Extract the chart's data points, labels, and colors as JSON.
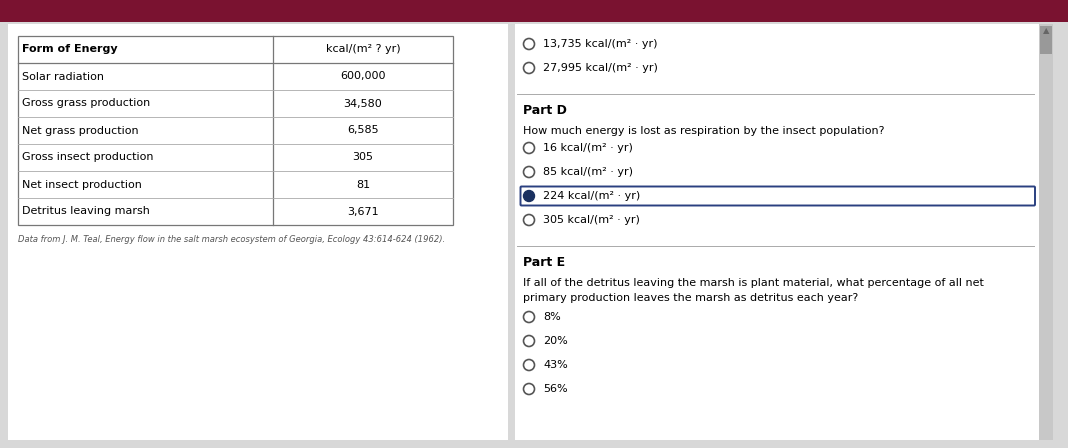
{
  "bg_color": "#d8d8d8",
  "panel_color": "#e8e8ec",
  "top_bar_color": "#7a1230",
  "table_header_col1": "Form of Energy",
  "table_header_col2": "kcal/(m² ? yr)",
  "table_rows": [
    [
      "Solar radiation",
      "600,000"
    ],
    [
      "Gross grass production",
      "34,580"
    ],
    [
      "Net grass production",
      "6,585"
    ],
    [
      "Gross insect production",
      "305"
    ],
    [
      "Net insect production",
      "81"
    ],
    [
      "Detritus leaving marsh",
      "3,671"
    ]
  ],
  "citation": "Data from J. M. Teal, Energy flow in the salt marsh ecosystem of Georgia, Ecology 43:614-624 (1962).",
  "part_c_options": [
    {
      "text": "13,735 kcal/(m² · yr)",
      "selected": false
    },
    {
      "text": "27,995 kcal/(m² · yr)",
      "selected": false
    }
  ],
  "part_d_title": "Part D",
  "part_d_question": "How much energy is lost as respiration by the insect population?",
  "part_d_options": [
    {
      "text": "16 kcal/(m² · yr)",
      "selected": false
    },
    {
      "text": "85 kcal/(m² · yr)",
      "selected": false
    },
    {
      "text": "224 kcal/(m² · yr)",
      "selected": true
    },
    {
      "text": "305 kcal/(m² · yr)",
      "selected": false
    }
  ],
  "part_e_title": "Part E",
  "part_e_question_line1": "If all of the detritus leaving the marsh is plant material, what percentage of all net",
  "part_e_question_line2": "primary production leaves the marsh as detritus each year?",
  "part_e_options": [
    {
      "text": "8%",
      "selected": false
    },
    {
      "text": "20%",
      "selected": false
    },
    {
      "text": "43%",
      "selected": false
    },
    {
      "text": "56%",
      "selected": false
    }
  ],
  "selected_dot_color": "#1a3060",
  "selected_box_color": "#2a4080",
  "unselected_circle_color": "#555555",
  "text_color": "#111111",
  "sep_line_color": "#aaaaaa",
  "table_border_color": "#777777",
  "table_line_color": "#aaaaaa",
  "scrollbar_bg": "#c8c8c8",
  "scrollbar_thumb": "#999999"
}
